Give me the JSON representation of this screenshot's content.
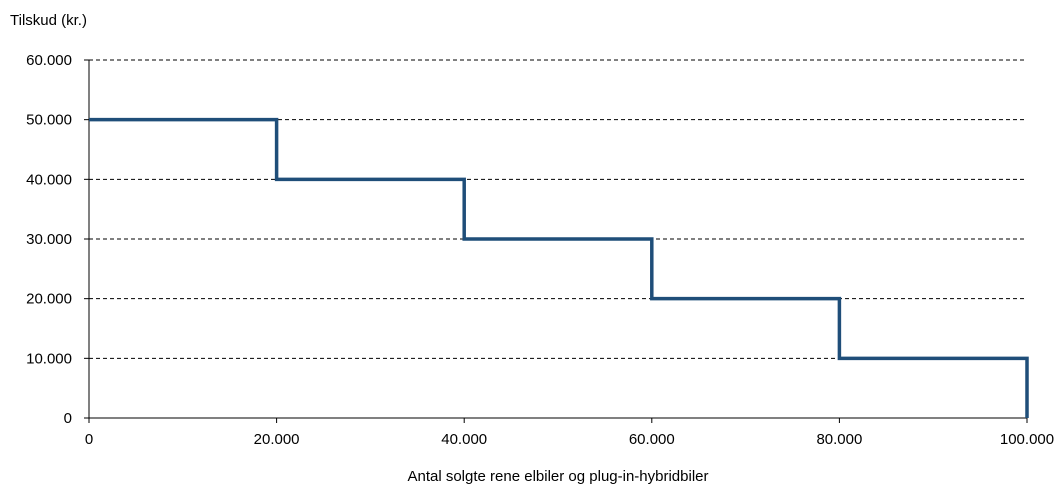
{
  "chart_data": {
    "type": "line",
    "step": true,
    "title": "",
    "ylabel": "Tilskud (kr.)",
    "xlabel": "Antal solgte rene elbiler og plug-in-hybridbiler",
    "x": [
      0,
      20000,
      20000,
      40000,
      40000,
      60000,
      60000,
      80000,
      80000,
      100000,
      100000
    ],
    "series": [
      {
        "values": [
          50000,
          50000,
          40000,
          40000,
          30000,
          30000,
          20000,
          20000,
          10000,
          10000,
          0
        ]
      }
    ],
    "xlim": [
      0,
      100000
    ],
    "ylim": [
      0,
      60000
    ],
    "x_ticks": [
      {
        "value": 0,
        "label": "0"
      },
      {
        "value": 20000,
        "label": "20.000"
      },
      {
        "value": 40000,
        "label": "40.000"
      },
      {
        "value": 60000,
        "label": "60.000"
      },
      {
        "value": 80000,
        "label": "80.000"
      },
      {
        "value": 100000,
        "label": "100.000"
      }
    ],
    "y_ticks": [
      {
        "value": 0,
        "label": "0"
      },
      {
        "value": 10000,
        "label": "10.000"
      },
      {
        "value": 20000,
        "label": "20.000"
      },
      {
        "value": 30000,
        "label": "30.000"
      },
      {
        "value": 40000,
        "label": "40.000"
      },
      {
        "value": 50000,
        "label": "50.000"
      },
      {
        "value": 60000,
        "label": "60.000"
      }
    ],
    "grid": "horizontal dashed",
    "legend": "none",
    "colors": {
      "line": "#1F4E79",
      "grid": "#000000",
      "axis": "#000000"
    }
  }
}
